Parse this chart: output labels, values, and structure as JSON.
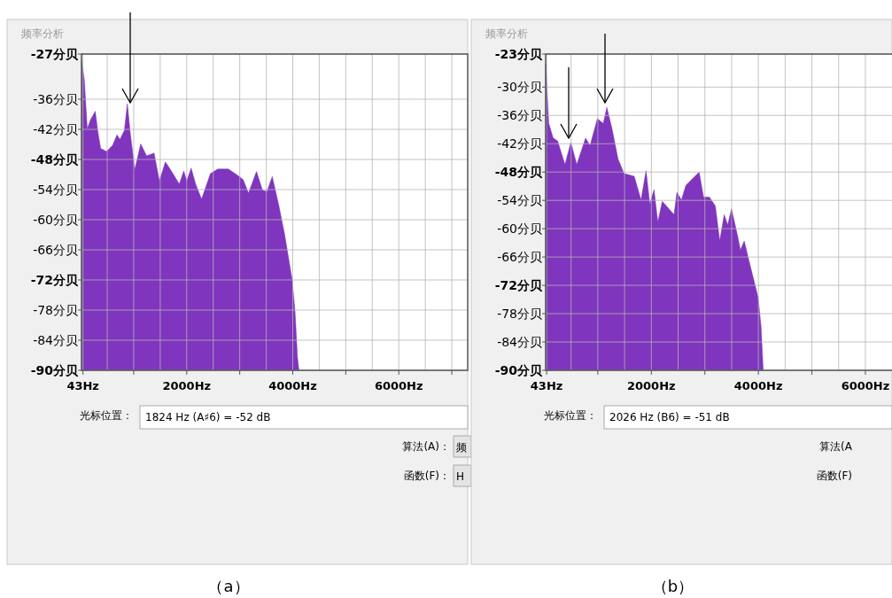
{
  "chart_data": [
    {
      "type": "area",
      "title": "频率分析",
      "x": [
        18,
        18,
        68,
        124,
        180,
        275,
        320,
        376,
        488,
        600,
        684,
        740,
        824,
        880,
        936,
        1020,
        1132,
        1244,
        1384,
        1485,
        1597,
        1692,
        1860,
        1944,
        2000,
        2084,
        2168,
        2280,
        2448,
        2588,
        2784,
        2952,
        3064,
        3165,
        3316,
        3428,
        3512,
        3613,
        3736,
        3848,
        3988,
        4044,
        4089,
        4117
      ],
      "series": [
        {
          "color": "#7f35bd",
          "values": [
            -90,
            -28.3,
            -32.1,
            -41.9,
            -40.2,
            -38.4,
            -42.2,
            -45.8,
            -46.4,
            -45.2,
            -43.1,
            -44.0,
            -42.2,
            -36.9,
            -42.8,
            -50.0,
            -44.9,
            -47.3,
            -46.7,
            -52.3,
            -48.5,
            -50.0,
            -52.9,
            -50.3,
            -52.3,
            -49.7,
            -52.9,
            -55.9,
            -50.8,
            -49.9,
            -49.9,
            -51.1,
            -52.0,
            -54.7,
            -50.4,
            -54.1,
            -54.4,
            -51.4,
            -57.1,
            -63.0,
            -71.9,
            -78.5,
            -87.4,
            -90
          ]
        }
      ],
      "xlim": [
        15,
        7300
      ],
      "ylim": [
        -90,
        -27
      ],
      "xticks": [
        {
          "value": 43,
          "label": "43Hz"
        },
        {
          "value": 1000,
          "label": null
        },
        {
          "value": 2000,
          "label": "2000Hz"
        },
        {
          "value": 3000,
          "label": null
        },
        {
          "value": 4000,
          "label": "4000Hz"
        },
        {
          "value": 5000,
          "label": null
        },
        {
          "value": 6000,
          "label": "6000Hz"
        },
        {
          "value": 7000,
          "label": null
        }
      ],
      "yticks": [
        {
          "value": -27,
          "label": "-27分贝"
        },
        {
          "value": -36,
          "label": "-36分贝"
        },
        {
          "value": -42,
          "label": "-42分贝"
        },
        {
          "value": -48,
          "label": "-48分贝"
        },
        {
          "value": -54,
          "label": "-54分贝"
        },
        {
          "value": -60,
          "label": "-60分贝"
        },
        {
          "value": -66,
          "label": "-66分贝"
        },
        {
          "value": -72,
          "label": "-72分贝"
        },
        {
          "value": -78,
          "label": "-78分贝"
        },
        {
          "value": -84,
          "label": "-84分贝"
        },
        {
          "value": -90,
          "label": "-90分贝"
        }
      ],
      "grid": true,
      "annotations": [
        "光标位置：",
        "1824 Hz (A♯6) = -52 dB",
        "算法(A)：",
        "频",
        "函数(F)：",
        "H",
        "（a）"
      ]
    },
    {
      "type": "area",
      "title": "频率分析",
      "x": [
        27,
        27,
        83,
        165,
        248,
        386,
        496,
        606,
        771,
        854,
        992,
        1102,
        1168,
        1267,
        1377,
        1488,
        1680,
        1807,
        1901,
        1972,
        2050,
        2121,
        2204,
        2424,
        2479,
        2562,
        2645,
        2893,
        2976,
        3086,
        3196,
        3278,
        3361,
        3427,
        3498,
        3609,
        3664,
        3736,
        3829,
        3939,
        3994,
        4050,
        4088,
        4090
      ],
      "series": [
        {
          "color": "#7f35bd",
          "values": [
            -90,
            -25.2,
            -37.7,
            -40.8,
            -41.4,
            -46.4,
            -41.7,
            -46.4,
            -40.8,
            -42.4,
            -36.7,
            -37.7,
            -34.3,
            -38.9,
            -45.2,
            -48.3,
            -48.9,
            -53.9,
            -47.7,
            -54.8,
            -51.7,
            -58.6,
            -54.2,
            -57.0,
            -52.3,
            -53.9,
            -50.8,
            -48.0,
            -53.3,
            -53.3,
            -55.2,
            -62.6,
            -57.0,
            -59.2,
            -55.8,
            -61.4,
            -64.5,
            -62.6,
            -67.0,
            -72.0,
            -74.5,
            -80.7,
            -89.5,
            -90
          ]
        }
      ],
      "xlim": [
        25,
        6530
      ],
      "ylim": [
        -90,
        -23
      ],
      "xticks": [
        {
          "value": 43,
          "label": "43Hz"
        },
        {
          "value": 1000,
          "label": null
        },
        {
          "value": 2000,
          "label": "2000Hz"
        },
        {
          "value": 3000,
          "label": null
        },
        {
          "value": 4000,
          "label": "4000Hz"
        },
        {
          "value": 5000,
          "label": null
        },
        {
          "value": 6000,
          "label": "6000Hz"
        }
      ],
      "yticks": [
        {
          "value": -23,
          "label": "-23分贝"
        },
        {
          "value": -30,
          "label": "-30分贝"
        },
        {
          "value": -36,
          "label": "-36分贝"
        },
        {
          "value": -42,
          "label": "-42分贝"
        },
        {
          "value": -48,
          "label": "-48分贝"
        },
        {
          "value": -54,
          "label": "-54分贝"
        },
        {
          "value": -60,
          "label": "-60分贝"
        },
        {
          "value": -66,
          "label": "-66分贝"
        },
        {
          "value": -72,
          "label": "-72分贝"
        },
        {
          "value": -78,
          "label": "-78分贝"
        },
        {
          "value": -84,
          "label": "-84分贝"
        },
        {
          "value": -90,
          "label": "-90分贝"
        }
      ],
      "grid": true,
      "annotations": [
        "光标位置：",
        "2026 Hz (B6) = -51 dB",
        "算法(A",
        "函数(F)",
        "（b）"
      ]
    }
  ]
}
